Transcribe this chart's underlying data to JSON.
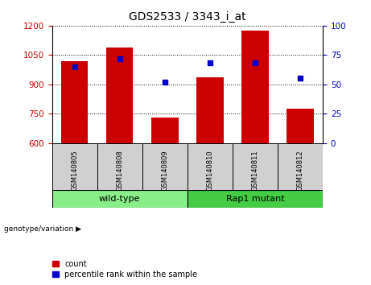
{
  "title": "GDS2533 / 3343_i_at",
  "samples": [
    "GSM140805",
    "GSM140808",
    "GSM140809",
    "GSM140810",
    "GSM140811",
    "GSM140812"
  ],
  "count_values": [
    1020,
    1090,
    730,
    935,
    1175,
    775
  ],
  "percentile_values": [
    65,
    72,
    52,
    68,
    68,
    55
  ],
  "ylim_left": [
    600,
    1200
  ],
  "ylim_right": [
    0,
    100
  ],
  "yticks_left": [
    600,
    750,
    900,
    1050,
    1200
  ],
  "yticks_right": [
    0,
    25,
    50,
    75,
    100
  ],
  "bar_color": "#cc0000",
  "dot_color": "#0000cc",
  "groups": [
    {
      "label": "wild-type",
      "indices": [
        0,
        1,
        2
      ],
      "color": "#88ee88"
    },
    {
      "label": "Rap1 mutant",
      "indices": [
        3,
        4,
        5
      ],
      "color": "#44cc44"
    }
  ],
  "group_label_prefix": "genotype/variation",
  "legend_count_label": "count",
  "legend_percentile_label": "percentile rank within the sample",
  "tick_label_color_left": "#cc0000",
  "tick_label_color_right": "#0000cc",
  "grid_style": "dotted",
  "bar_width": 0.6,
  "sample_box_color": "#d0d0d0",
  "spine_color": "#000000"
}
